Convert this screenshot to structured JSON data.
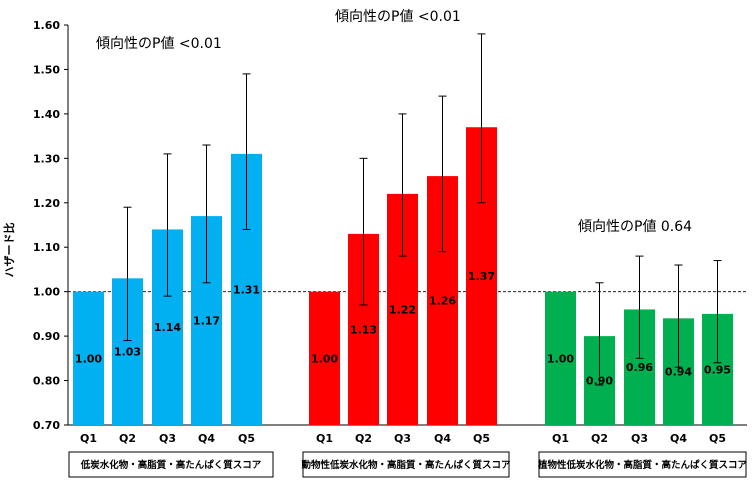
{
  "chart_data": {
    "type": "bar",
    "ylabel": "ハザード比",
    "ylim": [
      0.7,
      1.6
    ],
    "yticks": [
      "0.70",
      "0.80",
      "0.90",
      "1.00",
      "1.10",
      "1.20",
      "1.30",
      "1.40",
      "1.50",
      "1.60"
    ],
    "reference_line": 1.0,
    "categories": [
      "Q1",
      "Q2",
      "Q3",
      "Q4",
      "Q5"
    ],
    "groups": [
      {
        "label": "低炭水化物・高脂質・高たんぱく質スコア",
        "color": "#00B0F0",
        "p_value_text": "傾向性のP値 <0.01",
        "values": [
          1.0,
          1.03,
          1.14,
          1.17,
          1.31
        ],
        "value_labels": [
          "1.00",
          "1.03",
          "1.14",
          "1.17",
          "1.31"
        ],
        "ci_low": [
          1.0,
          0.89,
          0.99,
          1.02,
          1.14
        ],
        "ci_high": [
          1.0,
          1.19,
          1.31,
          1.33,
          1.49
        ]
      },
      {
        "label": "動物性低炭水化物・高脂質・高たんぱく質スコア",
        "color": "#FF0000",
        "p_value_text": "傾向性のP値 <0.01",
        "values": [
          1.0,
          1.13,
          1.22,
          1.26,
          1.37
        ],
        "value_labels": [
          "1.00",
          "1.13",
          "1.22",
          "1.26",
          "1.37"
        ],
        "ci_low": [
          1.0,
          0.97,
          1.08,
          1.09,
          1.2
        ],
        "ci_high": [
          1.0,
          1.3,
          1.4,
          1.44,
          1.58
        ]
      },
      {
        "label": "植物性低炭水化物・高脂質・高たんぱく質スコア",
        "color": "#00B050",
        "p_value_text": "傾向性のP値 0.64",
        "values": [
          1.0,
          0.9,
          0.96,
          0.94,
          0.95
        ],
        "value_labels": [
          "1.00",
          "0.90",
          "0.96",
          "0.94",
          "0.95"
        ],
        "ci_low": [
          1.0,
          0.79,
          0.85,
          0.83,
          0.84
        ],
        "ci_high": [
          1.0,
          1.02,
          1.08,
          1.06,
          1.07
        ]
      }
    ]
  }
}
